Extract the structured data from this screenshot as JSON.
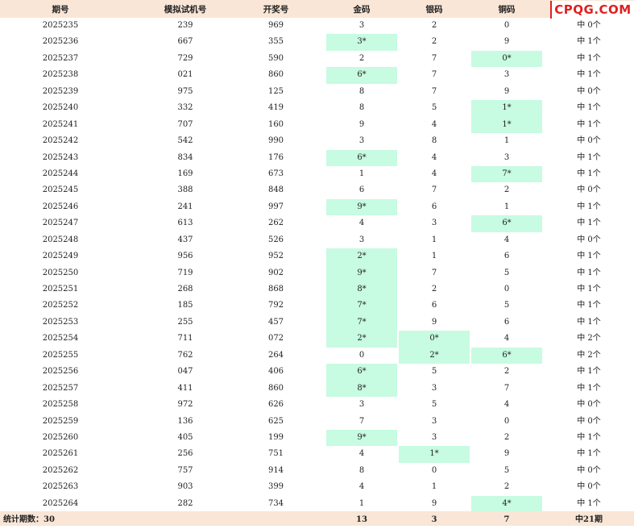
{
  "header": {
    "issue": "期号",
    "sim": "模拟试机号",
    "draw": "开奖号",
    "gold": "金码",
    "silver": "银码",
    "bronze": "铜码"
  },
  "logo": "CPQG.COM",
  "rows": [
    {
      "issue": "2025235",
      "sim": "239",
      "draw": "969",
      "gold": "3",
      "silver": "2",
      "bronze": "0",
      "result": "中 0个",
      "hit": ""
    },
    {
      "issue": "2025236",
      "sim": "667",
      "draw": "355",
      "gold": "3*",
      "silver": "2",
      "bronze": "9",
      "result": "中 1个",
      "hit": "gold"
    },
    {
      "issue": "2025237",
      "sim": "729",
      "draw": "590",
      "gold": "2",
      "silver": "7",
      "bronze": "0*",
      "result": "中 1个",
      "hit": "bronze"
    },
    {
      "issue": "2025238",
      "sim": "021",
      "draw": "860",
      "gold": "6*",
      "silver": "7",
      "bronze": "3",
      "result": "中 1个",
      "hit": "gold"
    },
    {
      "issue": "2025239",
      "sim": "975",
      "draw": "125",
      "gold": "8",
      "silver": "7",
      "bronze": "9",
      "result": "中 0个",
      "hit": ""
    },
    {
      "issue": "2025240",
      "sim": "332",
      "draw": "419",
      "gold": "8",
      "silver": "5",
      "bronze": "1*",
      "result": "中 1个",
      "hit": "bronze"
    },
    {
      "issue": "2025241",
      "sim": "707",
      "draw": "160",
      "gold": "9",
      "silver": "4",
      "bronze": "1*",
      "result": "中 1个",
      "hit": "bronze"
    },
    {
      "issue": "2025242",
      "sim": "542",
      "draw": "990",
      "gold": "3",
      "silver": "8",
      "bronze": "1",
      "result": "中 0个",
      "hit": ""
    },
    {
      "issue": "2025243",
      "sim": "834",
      "draw": "176",
      "gold": "6*",
      "silver": "4",
      "bronze": "3",
      "result": "中 1个",
      "hit": "gold"
    },
    {
      "issue": "2025244",
      "sim": "169",
      "draw": "673",
      "gold": "1",
      "silver": "4",
      "bronze": "7*",
      "result": "中 1个",
      "hit": "bronze"
    },
    {
      "issue": "2025245",
      "sim": "388",
      "draw": "848",
      "gold": "6",
      "silver": "7",
      "bronze": "2",
      "result": "中 0个",
      "hit": ""
    },
    {
      "issue": "2025246",
      "sim": "241",
      "draw": "997",
      "gold": "9*",
      "silver": "6",
      "bronze": "1",
      "result": "中 1个",
      "hit": "gold"
    },
    {
      "issue": "2025247",
      "sim": "613",
      "draw": "262",
      "gold": "4",
      "silver": "3",
      "bronze": "6*",
      "result": "中 1个",
      "hit": "bronze"
    },
    {
      "issue": "2025248",
      "sim": "437",
      "draw": "526",
      "gold": "3",
      "silver": "1",
      "bronze": "4",
      "result": "中 0个",
      "hit": ""
    },
    {
      "issue": "2025249",
      "sim": "956",
      "draw": "952",
      "gold": "2*",
      "silver": "1",
      "bronze": "6",
      "result": "中 1个",
      "hit": "gold"
    },
    {
      "issue": "2025250",
      "sim": "719",
      "draw": "902",
      "gold": "9*",
      "silver": "7",
      "bronze": "5",
      "result": "中 1个",
      "hit": "gold"
    },
    {
      "issue": "2025251",
      "sim": "268",
      "draw": "868",
      "gold": "8*",
      "silver": "2",
      "bronze": "0",
      "result": "中 1个",
      "hit": "gold"
    },
    {
      "issue": "2025252",
      "sim": "185",
      "draw": "792",
      "gold": "7*",
      "silver": "6",
      "bronze": "5",
      "result": "中 1个",
      "hit": "gold"
    },
    {
      "issue": "2025253",
      "sim": "255",
      "draw": "457",
      "gold": "7*",
      "silver": "9",
      "bronze": "6",
      "result": "中 1个",
      "hit": "gold"
    },
    {
      "issue": "2025254",
      "sim": "711",
      "draw": "072",
      "gold": "2*",
      "silver": "0*",
      "bronze": "4",
      "result": "中 2个",
      "hit": "gold silver"
    },
    {
      "issue": "2025255",
      "sim": "762",
      "draw": "264",
      "gold": "0",
      "silver": "2*",
      "bronze": "6*",
      "result": "中 2个",
      "hit": "silver bronze"
    },
    {
      "issue": "2025256",
      "sim": "047",
      "draw": "406",
      "gold": "6*",
      "silver": "5",
      "bronze": "2",
      "result": "中 1个",
      "hit": "gold"
    },
    {
      "issue": "2025257",
      "sim": "411",
      "draw": "860",
      "gold": "8*",
      "silver": "3",
      "bronze": "7",
      "result": "中 1个",
      "hit": "gold"
    },
    {
      "issue": "2025258",
      "sim": "972",
      "draw": "626",
      "gold": "3",
      "silver": "5",
      "bronze": "4",
      "result": "中 0个",
      "hit": ""
    },
    {
      "issue": "2025259",
      "sim": "136",
      "draw": "625",
      "gold": "7",
      "silver": "3",
      "bronze": "0",
      "result": "中 0个",
      "hit": ""
    },
    {
      "issue": "2025260",
      "sim": "405",
      "draw": "199",
      "gold": "9*",
      "silver": "3",
      "bronze": "2",
      "result": "中 1个",
      "hit": "gold"
    },
    {
      "issue": "2025261",
      "sim": "256",
      "draw": "751",
      "gold": "4",
      "silver": "1*",
      "bronze": "9",
      "result": "中 1个",
      "hit": "silver"
    },
    {
      "issue": "2025262",
      "sim": "757",
      "draw": "914",
      "gold": "8",
      "silver": "0",
      "bronze": "5",
      "result": "中 0个",
      "hit": ""
    },
    {
      "issue": "2025263",
      "sim": "903",
      "draw": "399",
      "gold": "4",
      "silver": "1",
      "bronze": "2",
      "result": "中 0个",
      "hit": ""
    },
    {
      "issue": "2025264",
      "sim": "282",
      "draw": "734",
      "gold": "1",
      "silver": "9",
      "bronze": "4*",
      "result": "中 1个",
      "hit": "bronze"
    }
  ],
  "footer": {
    "label": "统计期数：30",
    "gold_total": "13",
    "silver_total": "3",
    "bronze_total": "7",
    "result_total": "中21期"
  },
  "colors": {
    "header_bg": "#f9e6d6",
    "hit_bg": "#c7fbe2",
    "logo": "#e02020"
  }
}
